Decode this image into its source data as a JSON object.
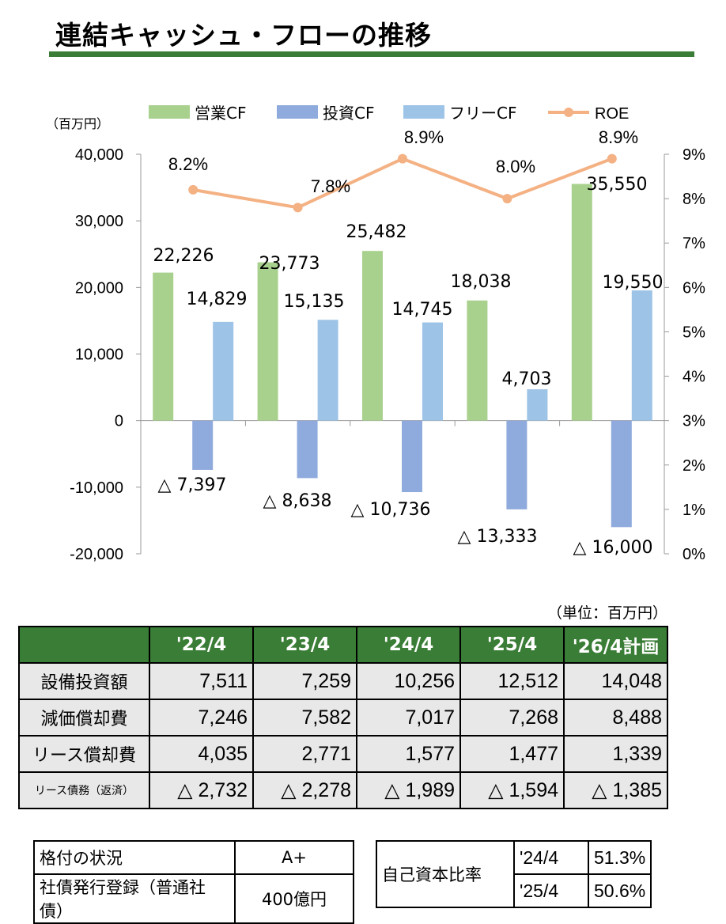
{
  "title": "連結キャッシュ・フローの推移",
  "colors": {
    "operating": "#a9d18e",
    "investing": "#8faadc",
    "free": "#9dc3e6",
    "roe": "#f4b183",
    "header": "#3a7d36",
    "rule": "#3a7d36"
  },
  "chart_data": {
    "type": "bar",
    "categories": [
      "'22/4",
      "'23/4",
      "'24/4",
      "'25/4",
      "'26/4計画"
    ],
    "y_unit_label": "（百万円）",
    "ylim": [
      -20000,
      40000
    ],
    "y_ticks": [
      "40,000",
      "30,000",
      "20,000",
      "10,000",
      "0",
      "-10,000",
      "-20,000"
    ],
    "y2lim": [
      0,
      9
    ],
    "y2_ticks": [
      "9%",
      "8%",
      "7%",
      "6%",
      "5%",
      "4%",
      "3%",
      "2%",
      "1%",
      "0%"
    ],
    "legend_position": "top",
    "series": [
      {
        "name": "営業CF",
        "values": [
          22226,
          23773,
          25482,
          18038,
          35550
        ],
        "labels": [
          "22,226",
          "23,773",
          "25,482",
          "18,038",
          "35,550"
        ]
      },
      {
        "name": "投資CF",
        "values": [
          -7397,
          -8638,
          -10736,
          -13333,
          -16000
        ],
        "labels": [
          "△ 7,397",
          "△ 8,638",
          "△ 10,736",
          "△ 13,333",
          "△ 16,000"
        ]
      },
      {
        "name": "フリーCF",
        "values": [
          14829,
          15135,
          14745,
          4703,
          19550
        ],
        "labels": [
          "14,829",
          "15,135",
          "14,745",
          "4,703",
          "19,550"
        ]
      },
      {
        "name": "ROE",
        "type": "line",
        "axis": "right",
        "values": [
          8.2,
          7.8,
          8.9,
          8.0,
          8.9
        ],
        "labels": [
          "8.2%",
          "7.8%",
          "8.9%",
          "8.0%",
          "8.9%"
        ]
      }
    ]
  },
  "table": {
    "unit_note": "（単位：百万円）",
    "corner": "",
    "headers": [
      "'22/4",
      "'23/4",
      "'24/4",
      "'25/4",
      "'26/4計画"
    ],
    "rows": [
      {
        "label": "設備投資額",
        "values": [
          "7,511",
          "7,259",
          "10,256",
          "12,512",
          "14,048"
        ]
      },
      {
        "label": "減価償却費",
        "values": [
          "7,246",
          "7,582",
          "7,017",
          "7,268",
          "8,488"
        ]
      },
      {
        "label": "リース償却費",
        "values": [
          "4,035",
          "2,771",
          "1,577",
          "1,477",
          "1,339"
        ]
      },
      {
        "label": "リース債務（返済）",
        "values": [
          "△ 2,732",
          "△ 2,278",
          "△ 1,989",
          "△ 1,594",
          "△ 1,385"
        ]
      }
    ]
  },
  "rating": {
    "rows": [
      {
        "label": "格付の状況",
        "value": "A+"
      },
      {
        "label": "社債発行登録（普通社債）",
        "value": "400億円"
      }
    ]
  },
  "equity_ratio": {
    "label": "自己資本比率",
    "rows": [
      {
        "year": "'24/4",
        "value": "51.3%"
      },
      {
        "year": "'25/4",
        "value": "50.6%"
      }
    ]
  }
}
